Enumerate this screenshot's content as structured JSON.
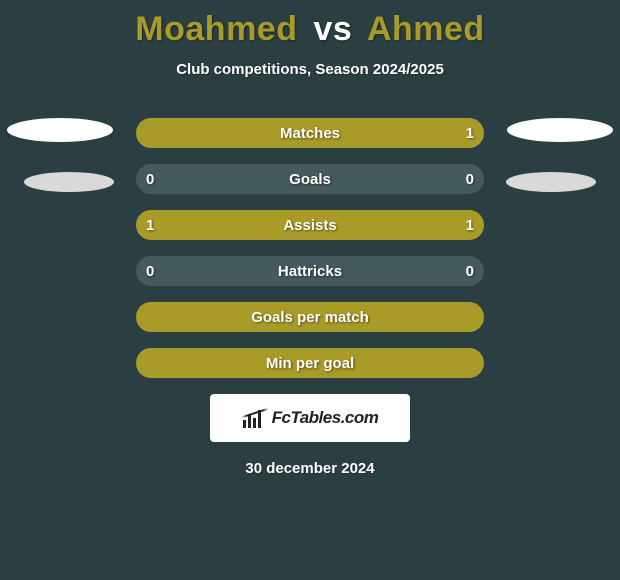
{
  "title": {
    "player1": "Moahmed",
    "vs": "vs",
    "player2": "Ahmed",
    "player1_color": "#a89b28",
    "vs_color": "#ffffff",
    "player2_color": "#a89b28"
  },
  "subtitle": "Club competitions, Season 2024/2025",
  "background_color": "#2b3f42",
  "player1_color": "#a89b28",
  "player2_color": "#a89b28",
  "bar_track_color": "#455a5d",
  "bars": [
    {
      "label": "Matches",
      "left": "",
      "right": "1",
      "left_pct": 0,
      "right_pct": 100
    },
    {
      "label": "Goals",
      "left": "0",
      "right": "0",
      "left_pct": 0,
      "right_pct": 0
    },
    {
      "label": "Assists",
      "left": "1",
      "right": "1",
      "left_pct": 50,
      "right_pct": 50
    },
    {
      "label": "Hattricks",
      "left": "0",
      "right": "0",
      "left_pct": 0,
      "right_pct": 0
    },
    {
      "label": "Goals per match",
      "left": "",
      "right": "",
      "left_pct": 100,
      "right_pct": 0
    },
    {
      "label": "Min per goal",
      "left": "",
      "right": "",
      "left_pct": 100,
      "right_pct": 0
    }
  ],
  "brand_text": "FcTables.com",
  "date": "30 december 2024"
}
